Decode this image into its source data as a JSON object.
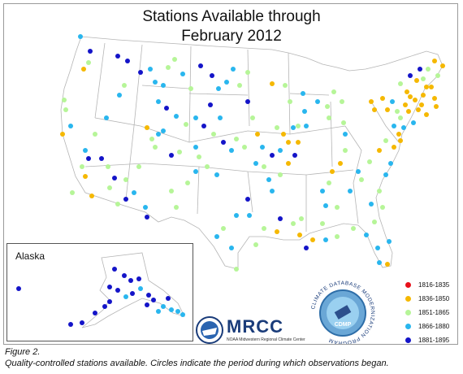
{
  "title_lines": [
    "Stations Available through",
    "February 2012"
  ],
  "inset_label": "Alaska",
  "legend": [
    {
      "label": "1816-1835",
      "color": "#e8101a"
    },
    {
      "label": "1836-1850",
      "color": "#f5b800"
    },
    {
      "label": "1851-1865",
      "color": "#b6f598"
    },
    {
      "label": "1866-1880",
      "color": "#29b6ee"
    },
    {
      "label": "1881-1895",
      "color": "#1414c8"
    }
  ],
  "caption_lines": [
    "Figure 2.",
    "Quality-controlled stations available.  Circles indicate the period during which observations began."
  ],
  "logos": {
    "mrcc_text": "MRCC",
    "mrcc_subtitle": "NOAA Midwestern Regional Climate Center",
    "cdmp_ring": "CLIMATE DATABASE MODERNIZATION PROGRAM",
    "cdmp_center": "CDMP"
  }
}
